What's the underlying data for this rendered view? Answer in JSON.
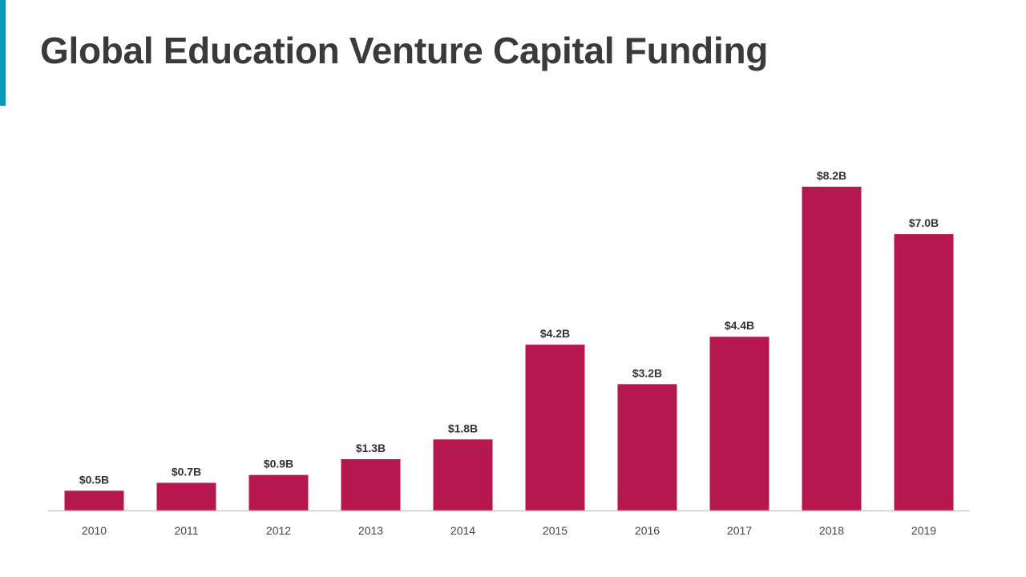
{
  "title": "Global Education Venture Capital Funding",
  "colors": {
    "accent": "#0a9ab8",
    "bar": "#b5174e",
    "axis": "#c8c8c8",
    "title": "#3a3a3a"
  },
  "chart_data": {
    "type": "bar",
    "title": "Global Education Venture Capital Funding",
    "xlabel": "",
    "ylabel": "",
    "unit": "billion USD",
    "categories": [
      "2010",
      "2011",
      "2012",
      "2013",
      "2014",
      "2015",
      "2016",
      "2017",
      "2018",
      "2019"
    ],
    "values": [
      0.5,
      0.7,
      0.9,
      1.3,
      1.8,
      4.2,
      3.2,
      4.4,
      8.2,
      7.0
    ],
    "data_labels": [
      "$0.5B",
      "$0.7B",
      "$0.9B",
      "$1.3B",
      "$1.8B",
      "$4.2B",
      "$3.2B",
      "$4.4B",
      "$8.2B",
      "$7.0B"
    ],
    "ylim": [
      0,
      8.2
    ],
    "grid": false,
    "legend": "none"
  }
}
